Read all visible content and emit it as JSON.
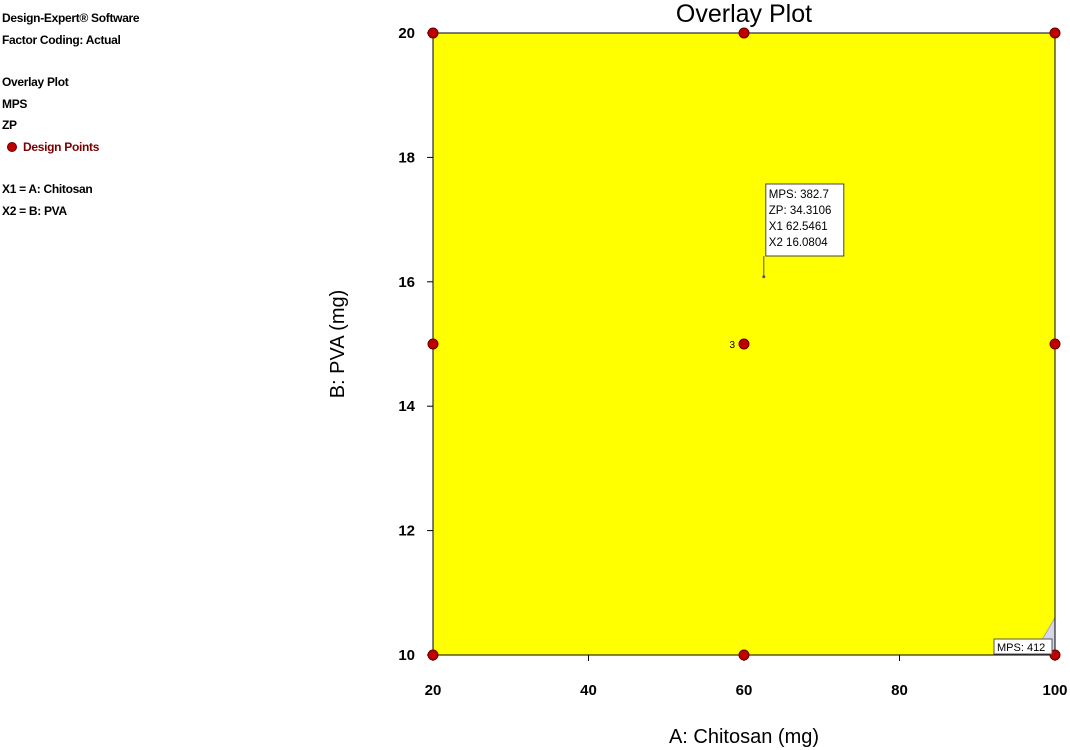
{
  "legend": {
    "software": "Design-Expert® Software",
    "coding": "Factor Coding: Actual",
    "plot_name": "Overlay Plot",
    "response1": "MPS",
    "response2": "ZP",
    "design_points": "Design Points",
    "x1": "X1 = A: Chitosan",
    "x2": "X2 = B: PVA"
  },
  "colors": {
    "region": "#ffff00",
    "corner": "#d6d6e8",
    "point": "#c00000",
    "point_edge": "#6a0000"
  },
  "chart_data": {
    "type": "scatter",
    "title": "Overlay Plot",
    "xlabel": "A: Chitosan  (mg)",
    "ylabel": "B: PVA (mg)",
    "xlim": [
      20,
      100
    ],
    "ylim": [
      10,
      20
    ],
    "xticks": [
      20,
      40,
      60,
      80,
      100
    ],
    "yticks": [
      10,
      12,
      14,
      16,
      18,
      20
    ],
    "design_points": [
      {
        "x": 20,
        "y": 20
      },
      {
        "x": 60,
        "y": 20
      },
      {
        "x": 100,
        "y": 20
      },
      {
        "x": 20,
        "y": 15
      },
      {
        "x": 60,
        "y": 15,
        "label": "3"
      },
      {
        "x": 100,
        "y": 15
      },
      {
        "x": 20,
        "y": 10
      },
      {
        "x": 60,
        "y": 10
      },
      {
        "x": 100,
        "y": 10
      }
    ],
    "flag": {
      "x": 62.5461,
      "y": 16.0804,
      "lines": [
        "MPS:   382.7",
        "ZP:   34.3106",
        "X1  62.5461",
        "X2  16.0804"
      ]
    },
    "contour": {
      "label": "MPS: 412",
      "value": 412
    }
  }
}
